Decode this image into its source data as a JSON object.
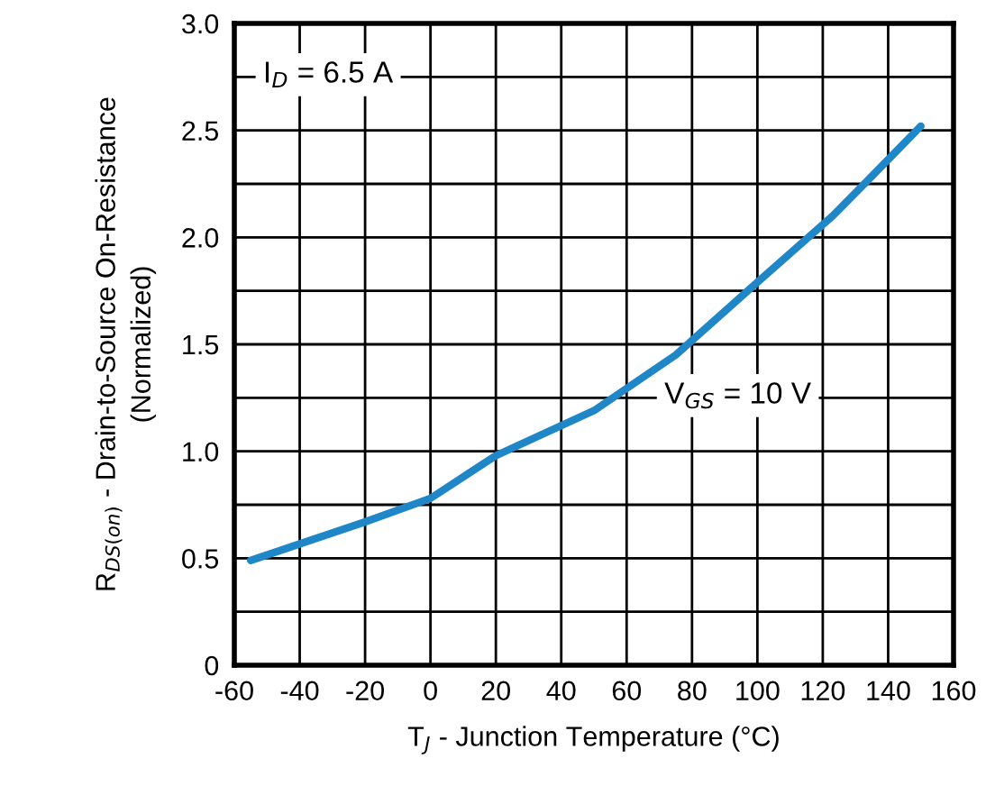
{
  "chart_data": {
    "type": "line",
    "xlabel": "T$_{J}$ - Junction Temperature (°C)",
    "ylabel": "R$_{DS(on)}$ - Drain-to-Source On-Resistance\n(Normalized)",
    "annotations": [
      "I$_{D}$ = 6.5 A"
    ],
    "x": [
      -55,
      -20,
      0,
      20,
      50,
      75,
      100,
      123,
      134,
      150
    ],
    "series": [
      {
        "name": "V$_{GS}$ = 10 V",
        "color": "#1f86c8",
        "values": [
          0.49,
          0.67,
          0.78,
          0.98,
          1.19,
          1.45,
          1.79,
          2.1,
          2.27,
          2.52
        ]
      }
    ],
    "xlim": [
      -60,
      160
    ],
    "xticks": [
      -60,
      -40,
      -20,
      0,
      20,
      40,
      60,
      80,
      100,
      120,
      140,
      160
    ],
    "ylim": [
      0,
      3
    ],
    "yticks": [
      0,
      {
        "value": 0.25,
        "label": null
      },
      {
        "value": 0.5,
        "label": "0.5"
      },
      {
        "value": 0.75,
        "label": null
      },
      {
        "value": 1,
        "label": "1.0"
      },
      {
        "value": 1.25,
        "label": null
      },
      {
        "value": 1.5,
        "label": "1.5"
      },
      {
        "value": 1.75,
        "label": null
      },
      {
        "value": 2,
        "label": "2.0"
      },
      {
        "value": 2.25,
        "label": null
      },
      {
        "value": 2.5,
        "label": "2.5"
      },
      {
        "value": 2.75,
        "label": null
      },
      {
        "value": 3,
        "label": "3.0"
      }
    ],
    "grid": true,
    "legend": false,
    "marker": "none",
    "line_style": "solid"
  }
}
